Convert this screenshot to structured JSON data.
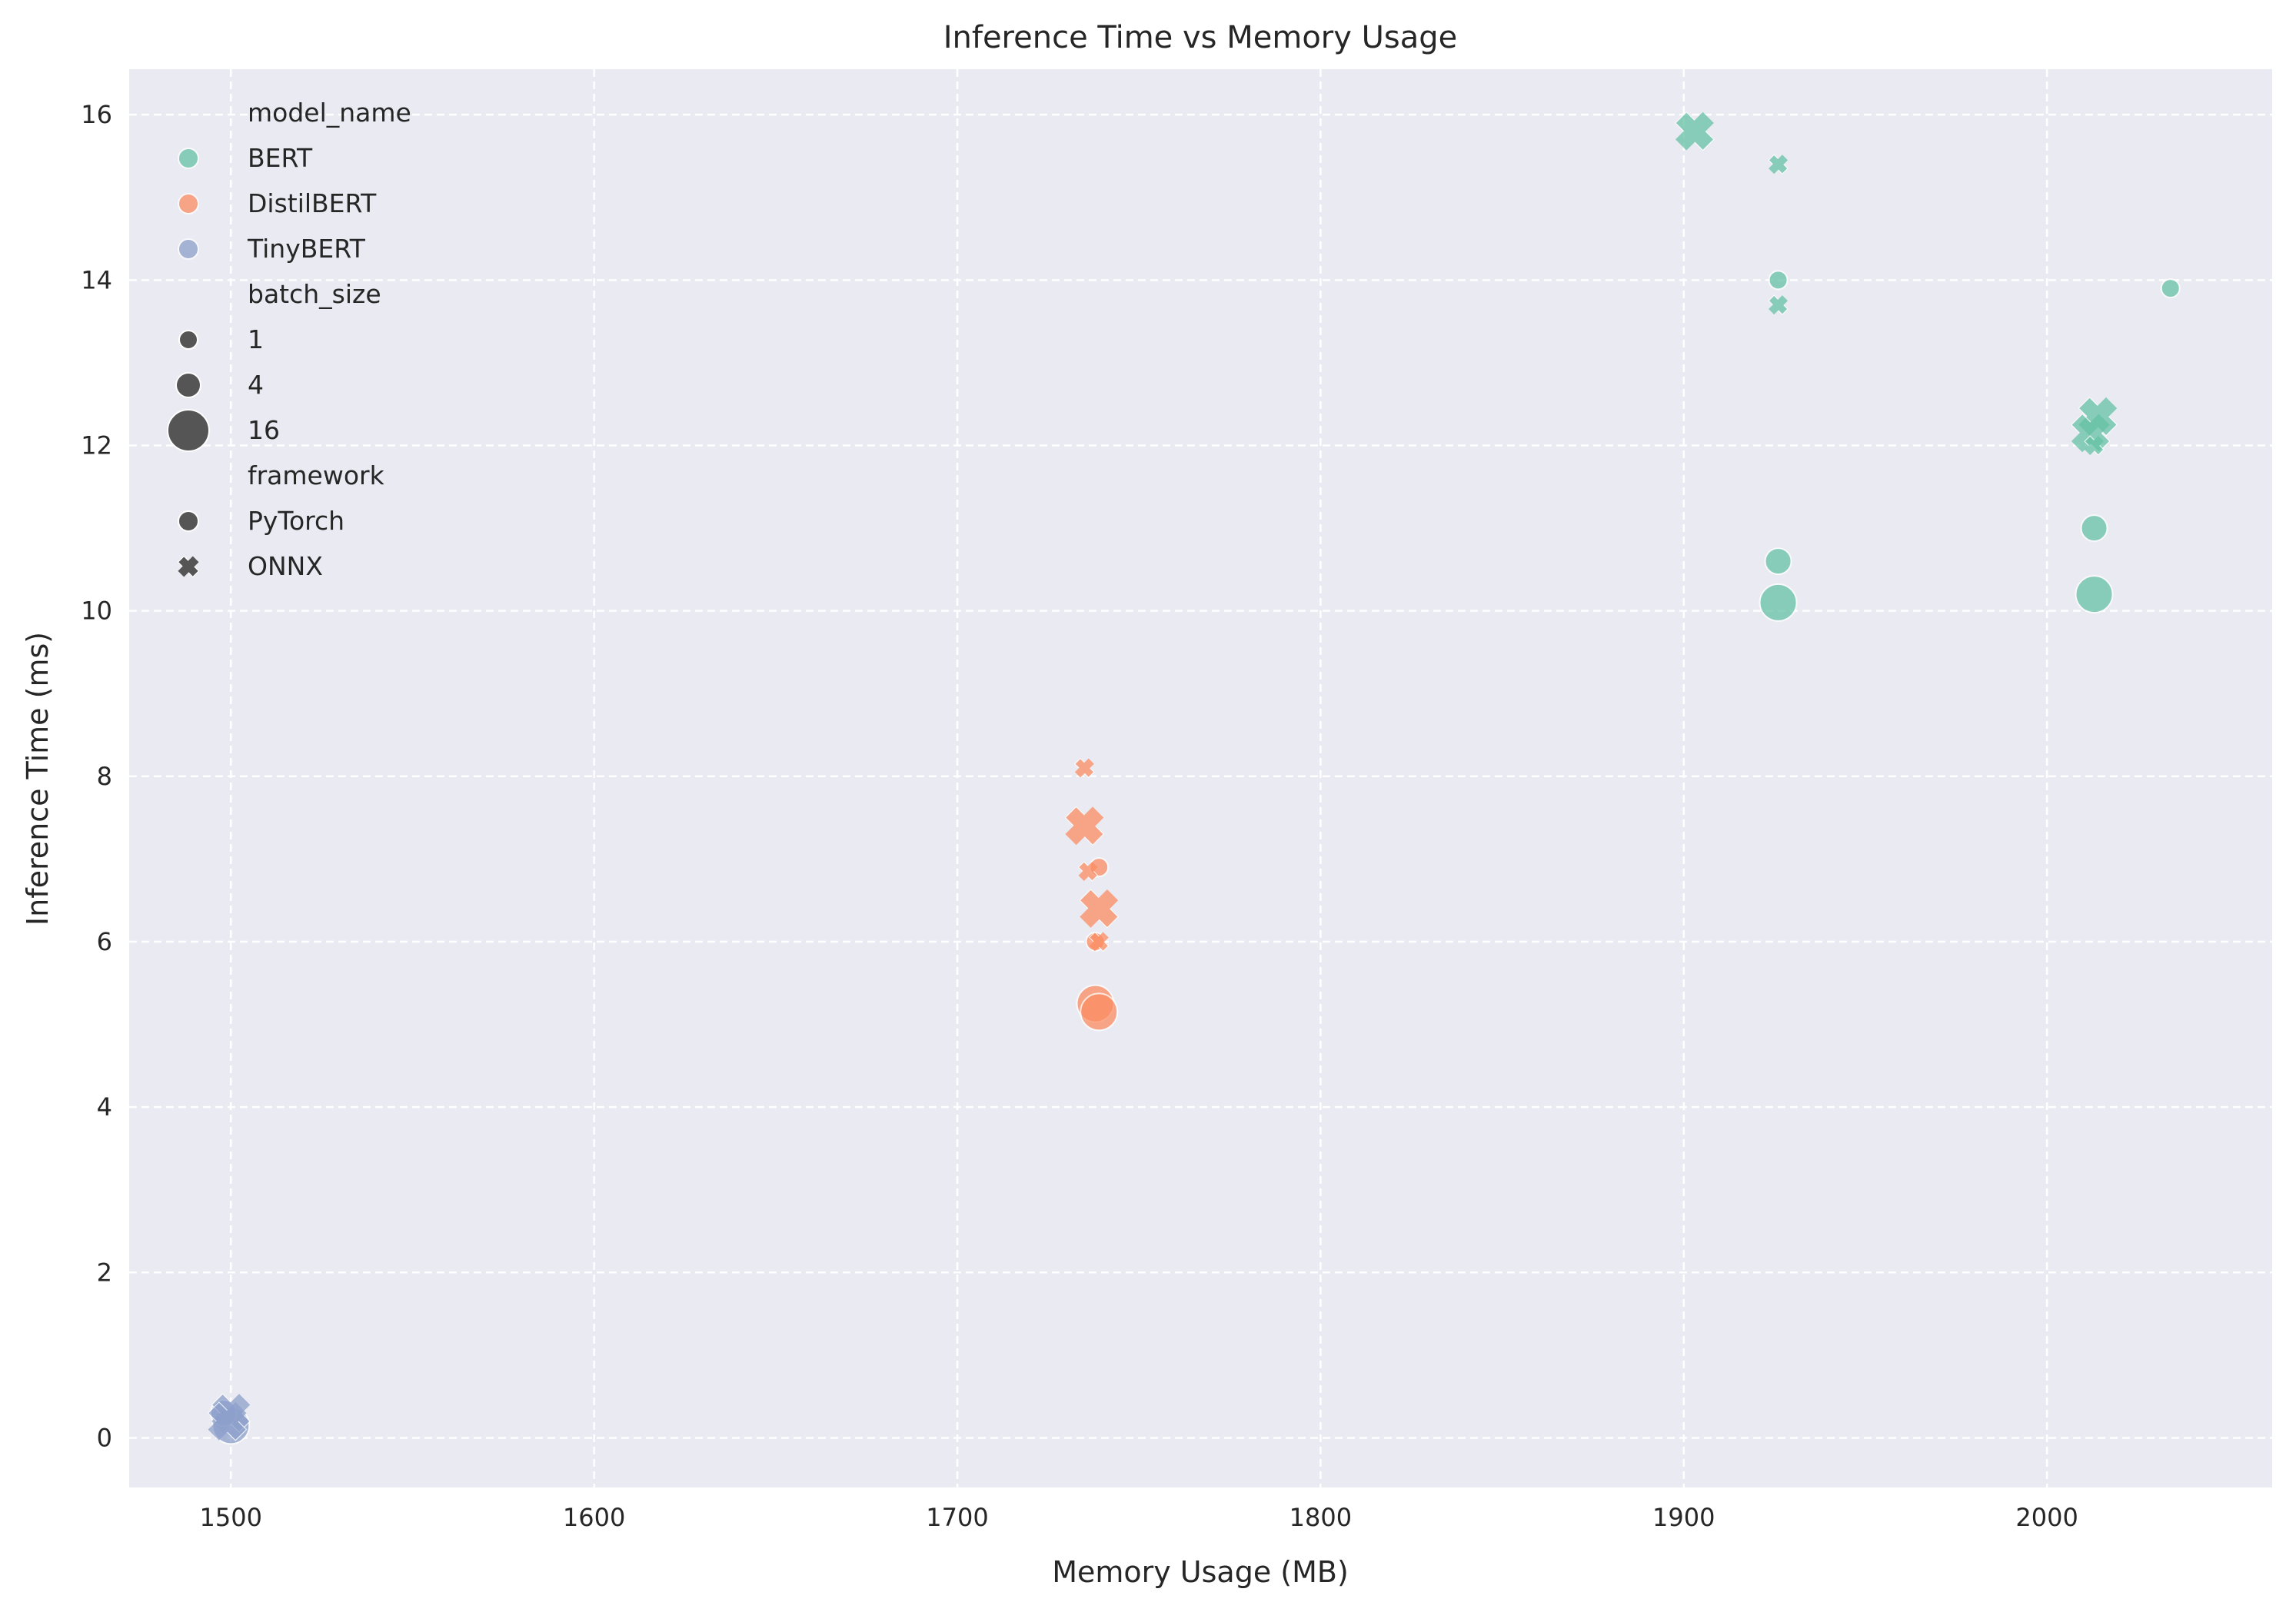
{
  "chart_data": {
    "type": "scatter",
    "title": "Inference Time vs Memory Usage",
    "xlabel": "Memory Usage (MB)",
    "ylabel": "Inference Time (ms)",
    "xlim": [
      1472,
      2062
    ],
    "ylim": [
      -0.6,
      16.55
    ],
    "x_ticks": [
      1500,
      1600,
      1700,
      1800,
      1900,
      2000
    ],
    "y_ticks": [
      0,
      2,
      4,
      6,
      8,
      10,
      12,
      14,
      16
    ],
    "grid": true,
    "grid_style": "dashed",
    "background": "#eaeaf2",
    "legend_position": "upper-left",
    "hue_title": "model_name",
    "size_title": "batch_size",
    "style_title": "framework",
    "colors": {
      "BERT": "#66c2a5",
      "DistilBERT": "#fc8d62",
      "TinyBERT": "#8da0cb"
    },
    "legend": {
      "model_name": [
        "BERT",
        "DistilBERT",
        "TinyBERT"
      ],
      "batch_size": [
        "1",
        "4",
        "16"
      ],
      "framework": [
        "PyTorch",
        "ONNX"
      ]
    },
    "series": [
      {
        "name": "BERT",
        "points": [
          {
            "x": 2034,
            "y": 13.9,
            "batch_size": 1,
            "framework": "PyTorch"
          },
          {
            "x": 1926,
            "y": 14.0,
            "batch_size": 1,
            "framework": "PyTorch"
          },
          {
            "x": 1926,
            "y": 10.6,
            "batch_size": 4,
            "framework": "PyTorch"
          },
          {
            "x": 1926,
            "y": 10.1,
            "batch_size": 16,
            "framework": "PyTorch"
          },
          {
            "x": 2013,
            "y": 11.0,
            "batch_size": 4,
            "framework": "PyTorch"
          },
          {
            "x": 2013,
            "y": 10.2,
            "batch_size": 16,
            "framework": "PyTorch"
          },
          {
            "x": 1903,
            "y": 15.8,
            "batch_size": 16,
            "framework": "ONNX"
          },
          {
            "x": 1926,
            "y": 15.4,
            "batch_size": 1,
            "framework": "ONNX"
          },
          {
            "x": 1926,
            "y": 13.7,
            "batch_size": 1,
            "framework": "ONNX"
          },
          {
            "x": 2014,
            "y": 12.35,
            "batch_size": 16,
            "framework": "ONNX"
          },
          {
            "x": 2012,
            "y": 12.15,
            "batch_size": 16,
            "framework": "ONNX"
          },
          {
            "x": 2013,
            "y": 12.0,
            "batch_size": 1,
            "framework": "ONNX"
          }
        ]
      },
      {
        "name": "DistilBERT",
        "points": [
          {
            "x": 1739,
            "y": 6.9,
            "batch_size": 1,
            "framework": "PyTorch"
          },
          {
            "x": 1738,
            "y": 6.0,
            "batch_size": 1,
            "framework": "PyTorch"
          },
          {
            "x": 1738,
            "y": 5.25,
            "batch_size": 16,
            "framework": "PyTorch"
          },
          {
            "x": 1739,
            "y": 5.15,
            "batch_size": 16,
            "framework": "PyTorch"
          },
          {
            "x": 1735,
            "y": 8.1,
            "batch_size": 1,
            "framework": "ONNX"
          },
          {
            "x": 1735,
            "y": 7.4,
            "batch_size": 16,
            "framework": "ONNX"
          },
          {
            "x": 1736,
            "y": 6.85,
            "batch_size": 1,
            "framework": "ONNX"
          },
          {
            "x": 1739,
            "y": 6.4,
            "batch_size": 16,
            "framework": "ONNX"
          },
          {
            "x": 1739,
            "y": 6.0,
            "batch_size": 1,
            "framework": "ONNX"
          }
        ]
      },
      {
        "name": "TinyBERT",
        "points": [
          {
            "x": 1500,
            "y": 0.15,
            "batch_size": 16,
            "framework": "PyTorch"
          },
          {
            "x": 1498,
            "y": 0.3,
            "batch_size": 4,
            "framework": "PyTorch"
          },
          {
            "x": 1500,
            "y": 0.3,
            "batch_size": 16,
            "framework": "ONNX"
          },
          {
            "x": 1499,
            "y": 0.2,
            "batch_size": 16,
            "framework": "ONNX"
          }
        ]
      }
    ]
  }
}
